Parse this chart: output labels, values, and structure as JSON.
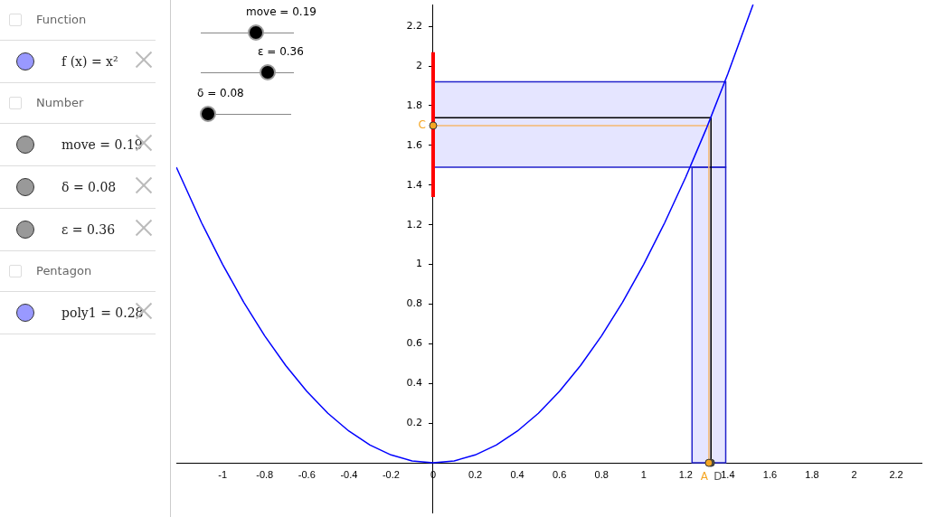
{
  "chart_data": {
    "type": "line",
    "annotations": [
      "Function",
      "f (x) = x²",
      "Number",
      "move = 0.19",
      "δ = 0.08",
      "ε = 0.36",
      "Pentagon",
      "poly1 = 0.28",
      "move = 0.19",
      "ε = 0.36",
      "δ = 0.08"
    ],
    "series": [
      {
        "type": "line",
        "color": "#0000ff",
        "x": [
          -1.22,
          -1.1,
          -1.0,
          -0.9,
          -0.8,
          -0.7,
          -0.6,
          -0.5,
          -0.4,
          -0.3,
          -0.2,
          -0.1,
          0,
          0.1,
          0.2,
          0.3,
          0.4,
          0.5,
          0.6,
          0.7,
          0.8,
          0.9,
          1.0,
          1.1,
          1.2,
          1.3,
          1.4,
          1.52
        ],
        "values": [
          1.49,
          1.21,
          1.0,
          0.81,
          0.64,
          0.49,
          0.36,
          0.25,
          0.16,
          0.09,
          0.04,
          0.01,
          0,
          0.01,
          0.04,
          0.09,
          0.16,
          0.25,
          0.36,
          0.49,
          0.64,
          0.81,
          1.0,
          1.21,
          1.44,
          1.69,
          1.96,
          2.31
        ]
      },
      {
        "type": "line",
        "color": "#ff0000",
        "x": [
          0,
          0
        ],
        "values": [
          1.34,
          2.07
        ]
      },
      {
        "type": "line",
        "color": "#f5b870",
        "x": [
          0,
          1.31,
          1.31
        ],
        "values": [
          1.7,
          1.7,
          0
        ]
      },
      {
        "type": "line",
        "color": "#000000",
        "x": [
          0,
          1.32,
          1.32
        ],
        "values": [
          1.74,
          1.74,
          0
        ]
      },
      {
        "type": "scatter",
        "name": "C",
        "marker": "circle",
        "color": "#f5a623",
        "x": [
          0
        ],
        "values": [
          1.7
        ]
      },
      {
        "type": "scatter",
        "name": "A",
        "marker": "circle",
        "color": "#f5a623",
        "x": [
          1.31
        ],
        "values": [
          0
        ]
      },
      {
        "type": "scatter",
        "name": "D",
        "marker": "circle",
        "color": "#555555",
        "x": [
          1.32
        ],
        "values": [
          0
        ]
      }
    ],
    "bands": [
      {
        "axis": "x",
        "from": 1.23,
        "to": 1.39,
        "color": "#9999ff"
      },
      {
        "axis": "y",
        "from": 1.49,
        "to": 1.92,
        "color": "#9999ff"
      }
    ],
    "xlim": [
      -1.22,
      2.32
    ],
    "ylim": [
      -0.25,
      2.31
    ],
    "xticks": [
      -1,
      -0.8,
      -0.6,
      -0.4,
      -0.2,
      0,
      0.2,
      0.4,
      0.6,
      0.8,
      1,
      1.2,
      1.4,
      1.6,
      1.8,
      2,
      2.2
    ],
    "yticks": [
      0.2,
      0.4,
      0.6,
      0.8,
      1,
      1.2,
      1.4,
      1.6,
      1.8,
      2,
      2.2
    ],
    "grid": false,
    "legend": false,
    "line_style": "solid"
  }
}
